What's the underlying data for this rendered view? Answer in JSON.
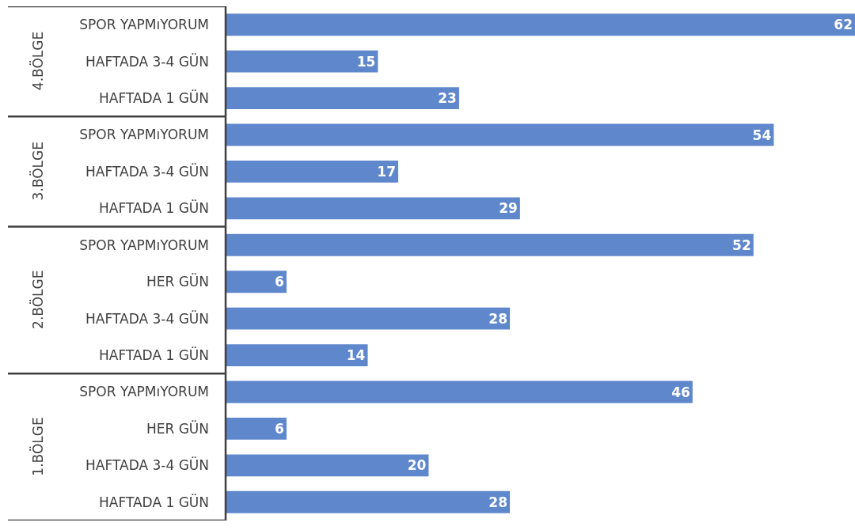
{
  "chart_data": {
    "type": "bar",
    "orientation": "horizontal",
    "data_labels": true,
    "legend": false,
    "categories": [
      "SPOR YAPMıYORUM",
      "HAFTADA 3-4 GÜN",
      "HAFTADA 1 GÜN",
      "SPOR YAPMıYORUM",
      "HAFTADA 3-4 GÜN",
      "HAFTADA 1 GÜN",
      "SPOR YAPMıYORUM",
      "HER GÜN",
      "HAFTADA 3-4 GÜN",
      "HAFTADA 1 GÜN",
      "SPOR YAPMıYORUM",
      "HER GÜN",
      "HAFTADA 3-4 GÜN",
      "HAFTADA 1 GÜN"
    ],
    "values": [
      62,
      15,
      23,
      54,
      17,
      29,
      52,
      6,
      28,
      14,
      46,
      6,
      20,
      28
    ],
    "color": "#5f87cc",
    "annotations": [
      "4.BÖLGE",
      "3.BÖLGE",
      "2.BÖLGE",
      "1.BÖLGE"
    ]
  }
}
